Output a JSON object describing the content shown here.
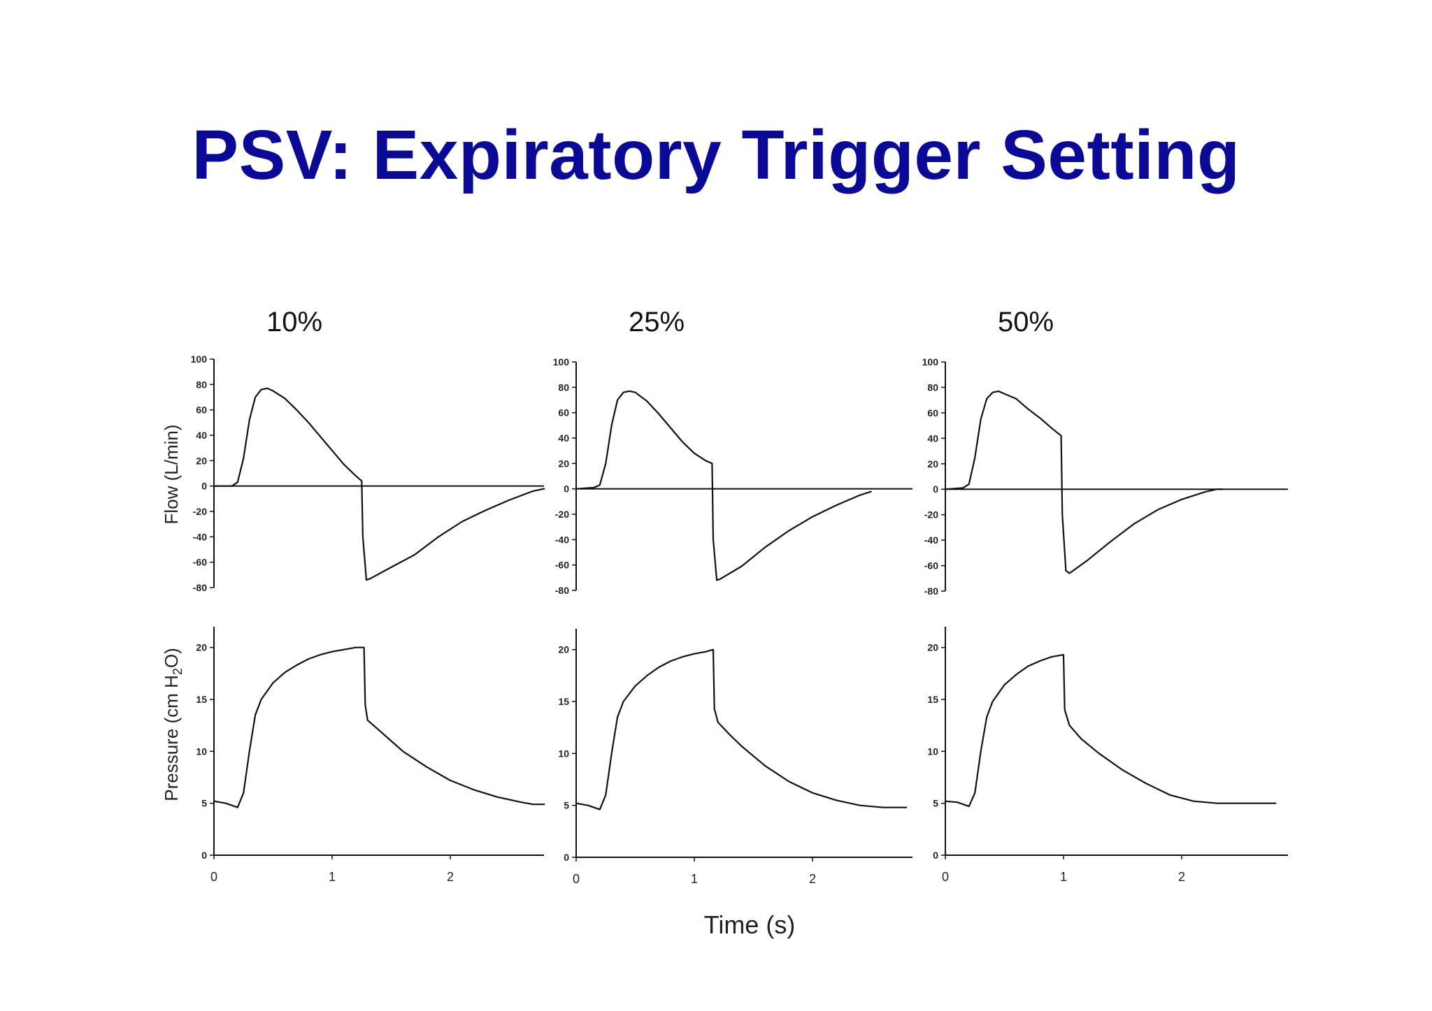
{
  "slide": {
    "title": "PSV: Expiratory Trigger Setting"
  },
  "chart_data": {
    "type": "line",
    "xlabel": "Time (s)",
    "x_ticks": [
      0,
      1,
      2
    ],
    "xlim": [
      0,
      2.8
    ],
    "flow_axis": {
      "ylabel": "Flow (L/min)",
      "ylim": [
        -80,
        100
      ],
      "ticks": [
        100,
        80,
        60,
        40,
        20,
        0,
        -20,
        -40,
        -60,
        -80
      ]
    },
    "pressure_axis": {
      "ylabel": "Pressure (cm H2O)",
      "ylabel_main": "Pressure (cm H",
      "ylabel_sub": "2",
      "ylabel_end": "O)",
      "ylim": [
        0,
        22
      ],
      "ticks": [
        20,
        15,
        10,
        5,
        0
      ]
    },
    "panels": [
      {
        "title": "10%",
        "flow": {
          "x": [
            0,
            0.15,
            0.2,
            0.25,
            0.3,
            0.35,
            0.4,
            0.45,
            0.5,
            0.6,
            0.7,
            0.8,
            0.9,
            1.0,
            1.1,
            1.2,
            1.25,
            1.26,
            1.29,
            1.32,
            1.5,
            1.7,
            1.9,
            2.1,
            2.3,
            2.5,
            2.7,
            2.8
          ],
          "y": [
            0,
            0,
            3,
            22,
            52,
            70,
            76,
            77,
            75,
            69,
            60,
            50,
            39,
            28,
            17,
            8,
            4,
            -40,
            -74,
            -73,
            -64,
            -54,
            -40,
            -28,
            -19,
            -11,
            -4,
            -2
          ]
        },
        "pressure": {
          "x": [
            0,
            0.1,
            0.2,
            0.25,
            0.3,
            0.35,
            0.4,
            0.5,
            0.6,
            0.7,
            0.8,
            0.9,
            1.0,
            1.1,
            1.2,
            1.27,
            1.28,
            1.3,
            1.4,
            1.5,
            1.6,
            1.8,
            2.0,
            2.2,
            2.4,
            2.6,
            2.7,
            2.8
          ],
          "y": [
            5.2,
            5.0,
            4.6,
            6,
            10,
            13.5,
            15,
            16.6,
            17.6,
            18.3,
            18.9,
            19.3,
            19.6,
            19.8,
            20,
            20,
            14.5,
            13,
            12,
            11,
            10,
            8.5,
            7.2,
            6.3,
            5.6,
            5.1,
            4.9,
            4.9
          ]
        }
      },
      {
        "title": "25%",
        "flow": {
          "x": [
            0,
            0.15,
            0.2,
            0.25,
            0.3,
            0.35,
            0.4,
            0.45,
            0.5,
            0.6,
            0.7,
            0.8,
            0.9,
            1.0,
            1.1,
            1.15,
            1.16,
            1.19,
            1.22,
            1.4,
            1.6,
            1.8,
            2.0,
            2.2,
            2.4,
            2.5
          ],
          "y": [
            0,
            1,
            3,
            20,
            50,
            70,
            76,
            77,
            76,
            69,
            59,
            48,
            37,
            28,
            22,
            20,
            -40,
            -72,
            -71,
            -61,
            -46,
            -33,
            -22,
            -13,
            -5,
            -2
          ]
        },
        "pressure": {
          "x": [
            0,
            0.1,
            0.2,
            0.25,
            0.3,
            0.35,
            0.4,
            0.5,
            0.6,
            0.7,
            0.8,
            0.9,
            1.0,
            1.1,
            1.16,
            1.17,
            1.2,
            1.3,
            1.4,
            1.6,
            1.8,
            2.0,
            2.2,
            2.4,
            2.6,
            2.8
          ],
          "y": [
            5.2,
            5.0,
            4.6,
            6,
            10,
            13.5,
            15,
            16.5,
            17.5,
            18.3,
            18.9,
            19.3,
            19.6,
            19.8,
            20,
            14.3,
            13,
            11.8,
            10.7,
            8.8,
            7.3,
            6.2,
            5.5,
            5.0,
            4.8,
            4.8
          ]
        }
      },
      {
        "title": "50%",
        "flow": {
          "x": [
            0,
            0.15,
            0.2,
            0.25,
            0.3,
            0.35,
            0.4,
            0.45,
            0.5,
            0.6,
            0.7,
            0.8,
            0.9,
            0.98,
            0.99,
            1.02,
            1.05,
            1.2,
            1.4,
            1.6,
            1.8,
            2.0,
            2.2,
            2.3,
            2.35
          ],
          "y": [
            0,
            1,
            4,
            25,
            55,
            71,
            76,
            77,
            75,
            71,
            63,
            56,
            48,
            42,
            -20,
            -64,
            -66,
            -56,
            -41,
            -27,
            -16,
            -8,
            -2,
            0,
            0
          ]
        },
        "pressure": {
          "x": [
            0,
            0.1,
            0.2,
            0.25,
            0.3,
            0.35,
            0.4,
            0.5,
            0.6,
            0.7,
            0.8,
            0.9,
            1.0,
            1.01,
            1.05,
            1.15,
            1.3,
            1.5,
            1.7,
            1.9,
            2.1,
            2.3,
            2.5,
            2.8
          ],
          "y": [
            5.2,
            5.1,
            4.7,
            6,
            10,
            13.3,
            14.8,
            16.4,
            17.4,
            18.2,
            18.7,
            19.1,
            19.3,
            14,
            12.5,
            11.2,
            9.8,
            8.2,
            6.9,
            5.8,
            5.2,
            5.0,
            5.0,
            5.0
          ]
        }
      }
    ]
  }
}
